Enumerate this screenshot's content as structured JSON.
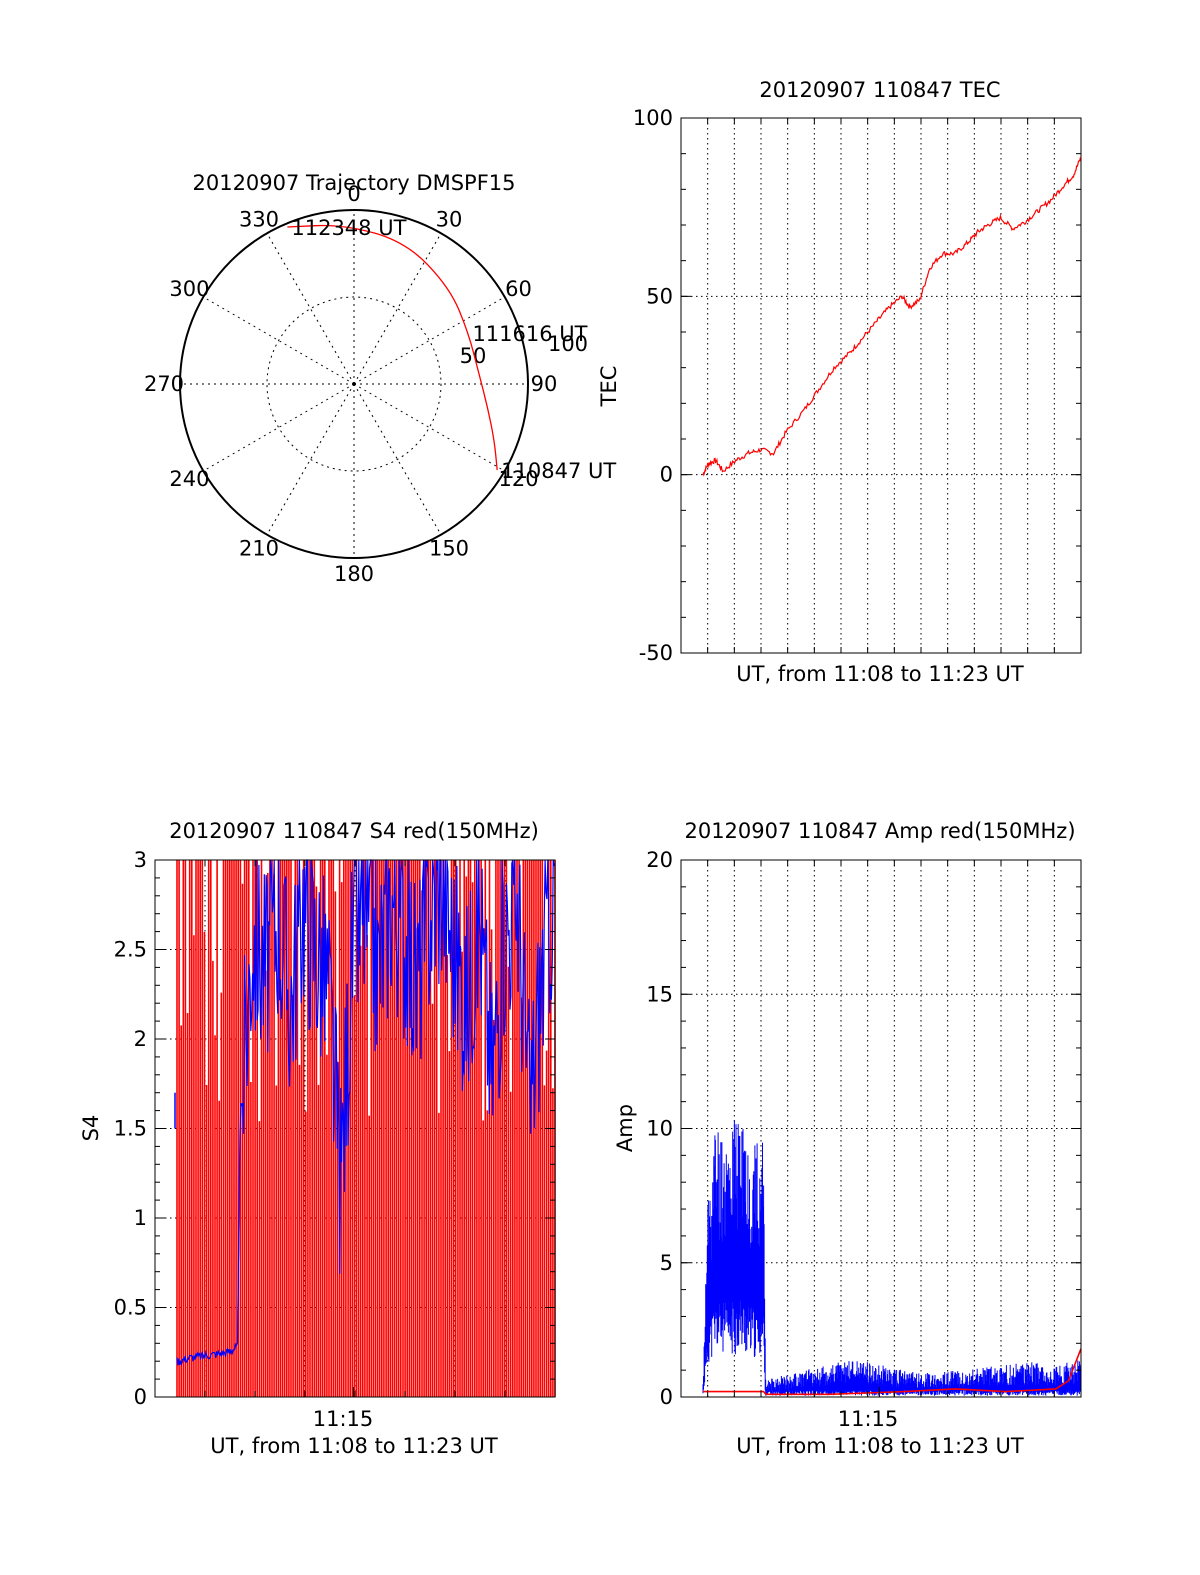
{
  "chart_data": [
    {
      "type": "polar",
      "title": "20120907 Trajectory DMSPF15",
      "angle_labels": [
        "0",
        "30",
        "60",
        "90",
        "120",
        "150",
        "180",
        "210",
        "240",
        "270",
        "300",
        "330"
      ],
      "radial_labels": [
        "50",
        "100"
      ],
      "radial_max": 100,
      "trajectory": {
        "color": "#ff0000",
        "points": [
          {
            "azimuth": 121,
            "radius": 96,
            "label": "110847 UT"
          },
          {
            "azimuth": 112,
            "radius": 87
          },
          {
            "azimuth": 100,
            "radius": 78
          },
          {
            "azimuth": 85,
            "radius": 72
          },
          {
            "azimuth": 66,
            "radius": 72,
            "label": "111616 UT"
          },
          {
            "azimuth": 45,
            "radius": 78
          },
          {
            "azimuth": 20,
            "radius": 87
          },
          {
            "azimuth": -4,
            "radius": 92
          },
          {
            "azimuth": -23,
            "radius": 98,
            "label": "112348 UT"
          }
        ]
      }
    },
    {
      "type": "line",
      "title": "20120907 110847 TEC",
      "xlabel": "UT, from 11:08 to 11:23 UT",
      "ylabel": "TEC",
      "ylim": [
        -50,
        100
      ],
      "yticks": [
        "-50",
        "0",
        "50",
        "100"
      ],
      "xlim_minutes": [
        0,
        15
      ],
      "grid": true,
      "series": [
        {
          "color": "#ff0000",
          "x": [
            0.0,
            0.2,
            0.5,
            0.8,
            1.3,
            1.8,
            2.3,
            2.8,
            3.3,
            4.0,
            4.6,
            5.2,
            5.8,
            6.3,
            6.9,
            7.4,
            7.9,
            8.2,
            8.6,
            9.0,
            9.5,
            10.0,
            10.5,
            10.9,
            11.3,
            11.8,
            12.3,
            12.8,
            13.3,
            13.8,
            14.3,
            14.7,
            15.0
          ],
          "y": [
            0,
            3,
            4,
            1,
            4,
            6,
            7,
            6,
            12,
            18,
            24,
            30,
            34,
            38,
            43,
            47,
            50,
            47,
            49,
            58,
            62,
            62,
            65,
            68,
            70,
            72,
            69,
            71,
            74,
            77,
            81,
            84,
            89
          ]
        }
      ]
    },
    {
      "type": "line",
      "title": "20120907 110847 S4 red(150MHz)",
      "xlabel": "UT, from 11:08 to 11:23 UT",
      "ylabel": "S4",
      "ylim": [
        0,
        3
      ],
      "yticks": [
        "0",
        "0.5",
        "1",
        "1.5",
        "2",
        "2.5",
        "3"
      ],
      "xtick_label": "11:15",
      "xtick_minute": 7,
      "xlim_minutes": [
        0,
        15
      ],
      "grid": true,
      "series": [
        {
          "color": "#0000ff",
          "x": [
            0.0,
            0.5,
            1.0,
            1.5,
            2.0,
            2.4,
            2.5,
            3.0,
            3.5,
            4.0,
            4.5,
            5.0,
            5.5,
            6.0,
            6.5,
            7.0,
            7.5,
            8.0,
            8.5,
            9.0,
            9.5,
            10.0,
            10.5,
            11.0,
            11.5,
            12.0,
            12.5,
            13.0,
            13.5,
            14.0,
            14.5,
            15.0
          ],
          "y": [
            0.2,
            0.22,
            0.23,
            0.24,
            0.25,
            0.28,
            1.5,
            2.6,
            2.4,
            2.7,
            2.2,
            2.8,
            2.5,
            2.3,
            1.2,
            2.6,
            2.7,
            2.4,
            2.8,
            2.6,
            2.3,
            2.7,
            2.9,
            2.5,
            2.2,
            2.7,
            1.8,
            2.6,
            2.8,
            1.6,
            2.4,
            2.9
          ]
        },
        {
          "color": "#ff0000",
          "x": [
            0.0,
            0.5,
            1.0,
            1.5,
            2.0,
            2.5,
            3.0,
            3.5,
            4.0,
            4.5,
            5.0,
            5.5,
            6.0,
            6.5,
            7.0,
            7.5,
            8.0,
            8.5,
            9.0,
            9.5,
            10.0,
            10.5,
            11.0,
            11.5,
            12.0,
            12.5,
            13.0,
            13.5,
            14.0,
            14.5,
            15.0
          ],
          "y": [
            3.0,
            3.0,
            3.0,
            3.0,
            3.0,
            3.0,
            3.0,
            3.0,
            3.0,
            3.0,
            3.0,
            3.0,
            3.0,
            3.0,
            3.0,
            3.0,
            3.0,
            3.0,
            3.0,
            3.0,
            3.0,
            3.0,
            3.0,
            3.0,
            3.0,
            3.0,
            3.0,
            3.0,
            3.0,
            3.0,
            3.0
          ]
        }
      ]
    },
    {
      "type": "line",
      "title": "20120907 110847 Amp red(150MHz)",
      "xlabel": "UT, from 11:08 to 11:23 UT",
      "ylabel": "Amp",
      "ylim": [
        0,
        20
      ],
      "yticks": [
        "0",
        "5",
        "10",
        "15",
        "20"
      ],
      "xtick_label": "11:15",
      "xtick_minute": 7,
      "xlim_minutes": [
        0,
        15
      ],
      "grid": true,
      "series": [
        {
          "color": "#0000ff",
          "x": [
            0.0,
            0.2,
            0.5,
            1.0,
            1.5,
            2.0,
            2.4,
            2.5,
            3.0,
            4.0,
            5.0,
            6.0,
            7.0,
            8.0,
            9.0,
            10.0,
            11.0,
            12.0,
            13.0,
            14.0,
            15.0
          ],
          "y": [
            0.5,
            8.0,
            10.5,
            10.0,
            10.8,
            9.5,
            9.8,
            0.6,
            0.8,
            1.0,
            1.2,
            1.5,
            1.2,
            1.0,
            0.9,
            1.0,
            1.1,
            1.2,
            1.3,
            1.2,
            1.4
          ]
        },
        {
          "color": "#ff0000",
          "x": [
            0.0,
            1.0,
            2.0,
            2.4,
            2.5,
            5.0,
            8.0,
            10.0,
            12.0,
            14.0,
            14.5,
            15.0
          ],
          "y": [
            0.2,
            0.2,
            0.2,
            0.2,
            0.1,
            0.1,
            0.2,
            0.3,
            0.2,
            0.3,
            0.6,
            1.8
          ]
        }
      ]
    }
  ]
}
